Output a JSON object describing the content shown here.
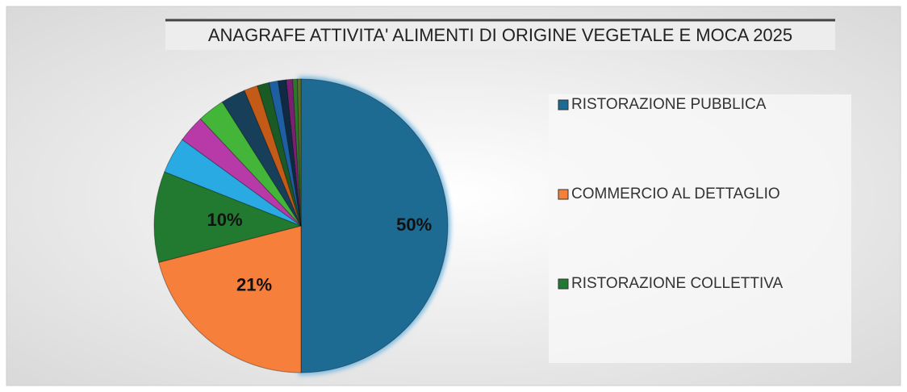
{
  "chart_data": {
    "type": "pie",
    "title": "ANAGRAFE ATTIVITA' ALIMENTI DI ORIGINE VEGETALE E MOCA 2025",
    "categories": [
      "RISTORAZIONE PUBBLICA",
      "COMMERCIO AL DETTAGLIO",
      "RISTORAZIONE COLLETTIVA",
      null,
      null,
      null,
      null,
      null,
      null,
      null,
      null,
      null,
      null,
      null
    ],
    "values": [
      50,
      21,
      10,
      4,
      3,
      3,
      2.7,
      1.5,
      1.3,
      1,
      0.9,
      0.7,
      0.5,
      0.4
    ],
    "value_labels": [
      "50%",
      "21%",
      "10%",
      null,
      null,
      null,
      null,
      null,
      null,
      null,
      null,
      null,
      null,
      null
    ],
    "colors": [
      "#1d6a93",
      "#f67f3b",
      "#217a30",
      "#2aaae2",
      "#b83aa8",
      "#43b63a",
      "#173f5a",
      "#c45a18",
      "#1a5a25",
      "#1d5fa0",
      "#102a44",
      "#7a2070",
      "#2b7a2b",
      "#5a6e2a"
    ],
    "legend": "right"
  }
}
